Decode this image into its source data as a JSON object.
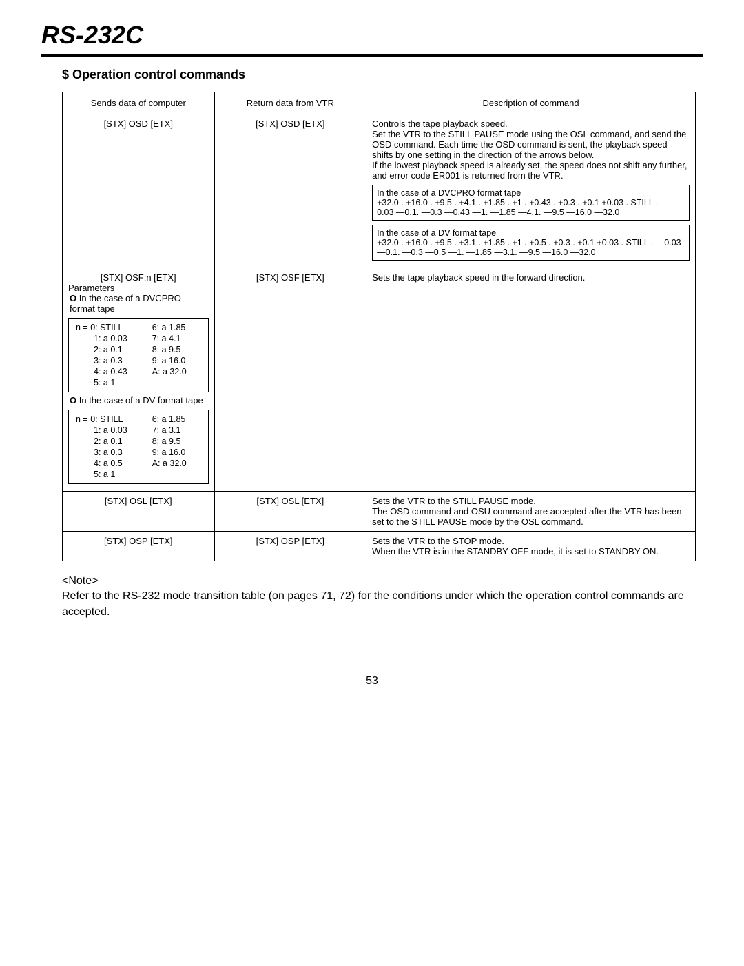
{
  "title": "RS-232C",
  "section_title": "$ Operation control commands",
  "headers": {
    "col1": "Sends data of computer",
    "col2": "Return data from VTR",
    "col3": "Description of command"
  },
  "rows": [
    {
      "send": "[STX] OSD [ETX]",
      "ret": "[STX] OSD [ETX]",
      "desc_main": "Controls the tape playback speed.\nSet the VTR to the STILL PAUSE mode using the OSL command, and send the OSD command.  Each time the OSD command is sent, the playback speed shifts by one setting in the direction of the arrows below.\nIf the lowest playback speed is already set, the speed does not shift any further, and error code ER001 is returned from the VTR.",
      "box1_title": "In the case of a DVCPRO format tape",
      "box1_body": "+32.0 . +16.0 . +9.5 . +4.1 . +1.85 . +1 . +0.43 . +0.3 . +0.1 +0.03 . STILL . —0.03 —0.1. —0.3 —0.43 —1. —1.85 —4.1. —9.5 —16.0 —32.0",
      "box2_title": "In the case of a DV format tape",
      "box2_body": "+32.0 . +16.0 . +9.5 . +3.1 . +1.85 . +1 . +0.5 . +0.3 . +0.1 +0.03 . STILL . —0.03 —0.1. —0.3 —0.5 —1. —1.85 —3.1. —9.5 —16.0 —32.0"
    },
    {
      "send_line1": "[STX] OSF:n [ETX]",
      "send_line2": "Parameters",
      "send_line3": "O In the case of a DVCPRO format tape",
      "dvcpro_params": [
        [
          "n = 0:  STILL",
          "6:  a 1.85"
        ],
        [
          "1:  a 0.03",
          "7:  a 4.1"
        ],
        [
          "2:  a 0.1",
          "8:  a 9.5"
        ],
        [
          "3:  a 0.3",
          "9:  a 16.0"
        ],
        [
          "4:  a 0.43",
          "A:  a 32.0"
        ],
        [
          "5:  a 1",
          ""
        ]
      ],
      "send_line4": "O In the case of a DV format tape",
      "dv_params": [
        [
          "n = 0:  STILL",
          "6:  a 1.85"
        ],
        [
          "1:  a 0.03",
          "7:  a 3.1"
        ],
        [
          "2:  a 0.1",
          "8:  a 9.5"
        ],
        [
          "3:  a 0.3",
          "9:  a 16.0"
        ],
        [
          "4:  a 0.5",
          "A:  a 32.0"
        ],
        [
          "5:  a 1",
          ""
        ]
      ],
      "ret": "[STX] OSF [ETX]",
      "desc": "Sets the tape playback speed in the forward direction."
    },
    {
      "send": "[STX] OSL [ETX]",
      "ret": "[STX] OSL [ETX]",
      "desc": "Sets the VTR to the STILL PAUSE mode.\nThe OSD command and OSU command are accepted after the VTR has been set to the STILL PAUSE mode by the OSL command."
    },
    {
      "send": "[STX] OSP [ETX]",
      "ret": "[STX] OSP [ETX]",
      "desc": "Sets the VTR to the STOP mode.\nWhen the VTR is in the STANDBY OFF mode, it is set to STANDBY ON."
    }
  ],
  "note_label": "<Note>",
  "note_body": "Refer to the RS-232 mode transition table (on pages 71, 72) for the conditions under which the operation control commands are accepted.",
  "page_number": "53"
}
